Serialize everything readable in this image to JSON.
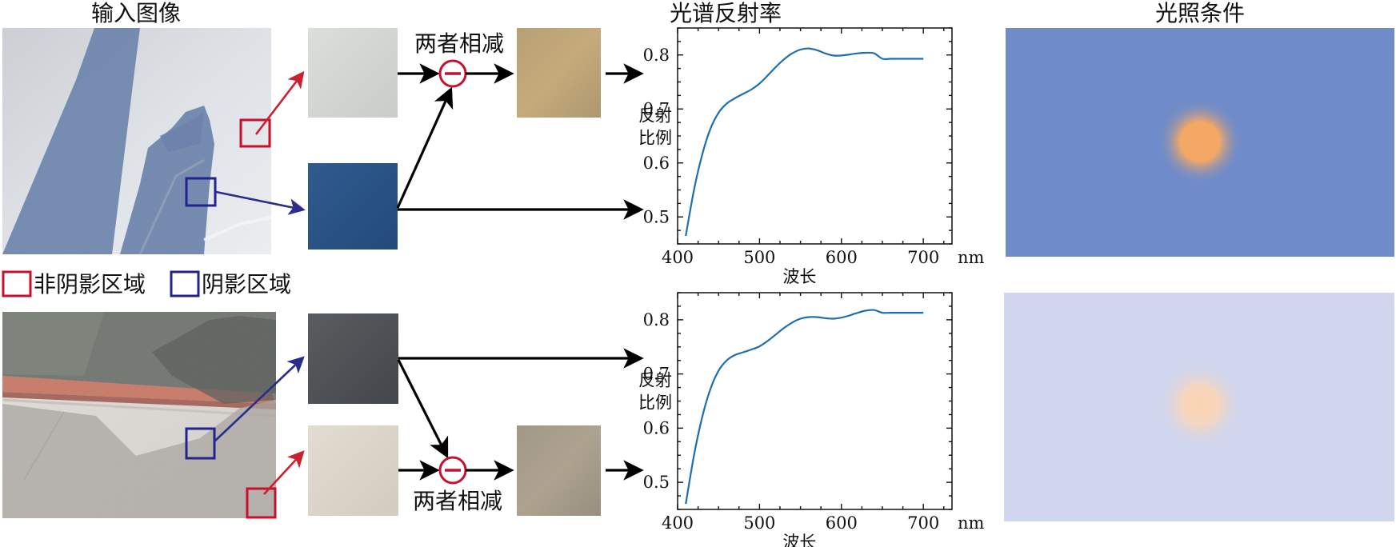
{
  "titles": {
    "input": "输入图像",
    "reflectance": "光谱反射率",
    "illumination": "光照条件"
  },
  "legend": {
    "non_shadow": "非阴影区域",
    "shadow": "阴影区域"
  },
  "subtract_label_top": "两者相减",
  "subtract_label_bottom": "两者相减",
  "colors": {
    "non_shadow_box": "#c8102e",
    "shadow_box": "#23238e",
    "curve": "#1f6fae",
    "illum_top_bg": "#6f8bc9",
    "illum_bottom_bg": "#cfd6ee",
    "illum_top_glow": "#f4a866",
    "illum_bottom_glow": "#f8d2b2"
  },
  "chart_data": [
    {
      "type": "line",
      "xlabel": "波长",
      "xunit": "nm",
      "ylabel": "反射比例",
      "xlim": [
        400,
        735
      ],
      "ylim": [
        0.45,
        0.85
      ],
      "xticks": [
        400,
        500,
        600,
        700
      ],
      "yticks": [
        0.5,
        0.6,
        0.7,
        0.8
      ],
      "series": [
        {
          "x": [
            410,
            420,
            430,
            440,
            450,
            460,
            470,
            480,
            490,
            500,
            510,
            520,
            530,
            540,
            550,
            560,
            570,
            580,
            590,
            600,
            610,
            620,
            630,
            640,
            650,
            660,
            670,
            680,
            690,
            700
          ],
          "values": [
            0.465,
            0.55,
            0.615,
            0.663,
            0.693,
            0.71,
            0.72,
            0.728,
            0.736,
            0.747,
            0.762,
            0.778,
            0.792,
            0.803,
            0.81,
            0.812,
            0.809,
            0.803,
            0.799,
            0.799,
            0.801,
            0.803,
            0.804,
            0.803,
            0.793,
            0.793,
            0.793,
            0.793,
            0.793,
            0.793
          ]
        }
      ]
    },
    {
      "type": "line",
      "xlabel": "波长",
      "xunit": "nm",
      "ylabel": "反射比例",
      "xlim": [
        400,
        735
      ],
      "ylim": [
        0.45,
        0.85
      ],
      "xticks": [
        400,
        500,
        600,
        700
      ],
      "yticks": [
        0.5,
        0.6,
        0.7,
        0.8
      ],
      "series": [
        {
          "x": [
            410,
            420,
            430,
            440,
            450,
            460,
            470,
            480,
            490,
            500,
            510,
            520,
            530,
            540,
            550,
            560,
            570,
            580,
            590,
            600,
            610,
            620,
            630,
            640,
            650,
            660,
            670,
            680,
            690,
            700
          ],
          "values": [
            0.46,
            0.55,
            0.62,
            0.672,
            0.706,
            0.725,
            0.735,
            0.74,
            0.745,
            0.751,
            0.761,
            0.773,
            0.785,
            0.795,
            0.802,
            0.805,
            0.805,
            0.803,
            0.802,
            0.804,
            0.808,
            0.813,
            0.817,
            0.818,
            0.813,
            0.813,
            0.813,
            0.813,
            0.813,
            0.813
          ]
        }
      ]
    }
  ]
}
